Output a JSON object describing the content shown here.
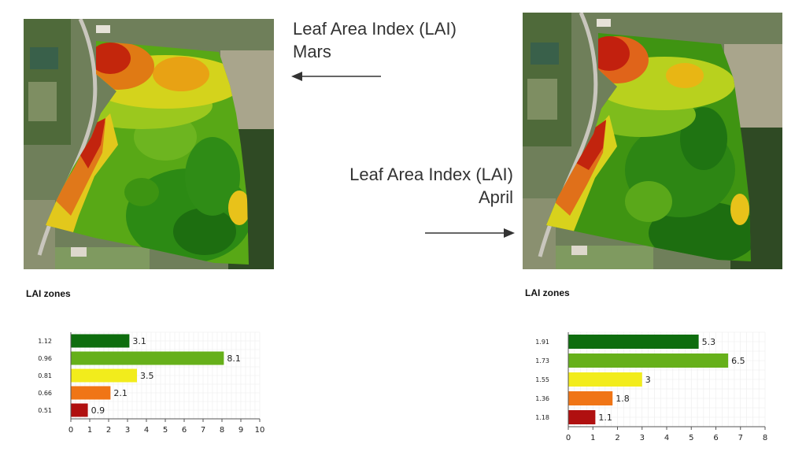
{
  "captions": {
    "mars": {
      "line1": "Leaf Area Index (LAI)",
      "line2": "Mars"
    },
    "april": {
      "line1": "Leaf Area Index (LAI)",
      "line2": "April"
    }
  },
  "zones_titles": [
    "LAI zones",
    "LAI zones"
  ],
  "colors": {
    "dark_green": "#0e6d0e",
    "light_green": "#66b01a",
    "yellow": "#f2ec1c",
    "orange": "#f07516",
    "dark_red": "#b01010",
    "grid": "#ececec",
    "axis": "#555555"
  },
  "maps": [
    {
      "name": "march-lai-map",
      "icon": "aerial-field-heatmap"
    },
    {
      "name": "april-lai-map",
      "icon": "aerial-field-heatmap"
    }
  ],
  "chart_data": [
    {
      "type": "bar",
      "orientation": "horizontal",
      "title": "",
      "xlabel": "",
      "ylabel": "",
      "categories": [
        "1.12",
        "0.96",
        "0.81",
        "0.66",
        "0.51"
      ],
      "values": [
        3.1,
        8.1,
        3.5,
        2.1,
        0.9
      ],
      "value_labels": [
        "3.1",
        "8.1",
        "3.5",
        "2.1",
        "0.9"
      ],
      "bar_colors": [
        "#0e6d0e",
        "#66b01a",
        "#f2ec1c",
        "#f07516",
        "#b01010"
      ],
      "xlim": [
        0,
        10
      ],
      "xticks": [
        "0",
        "1",
        "2",
        "3",
        "4",
        "5",
        "6",
        "7",
        "8",
        "9",
        "10"
      ],
      "grid": true
    },
    {
      "type": "bar",
      "orientation": "horizontal",
      "title": "",
      "xlabel": "",
      "ylabel": "",
      "categories": [
        "1.91",
        "1.73",
        "1.55",
        "1.36",
        "1.18"
      ],
      "values": [
        5.3,
        6.5,
        3,
        1.8,
        1.1
      ],
      "value_labels": [
        "5.3",
        "6.5",
        "3",
        "1.8",
        "1.1"
      ],
      "bar_colors": [
        "#0e6d0e",
        "#66b01a",
        "#f2ec1c",
        "#f07516",
        "#b01010"
      ],
      "xlim": [
        0,
        8
      ],
      "xticks": [
        "0",
        "1",
        "2",
        "3",
        "4",
        "5",
        "6",
        "7",
        "8"
      ],
      "grid": true
    }
  ]
}
